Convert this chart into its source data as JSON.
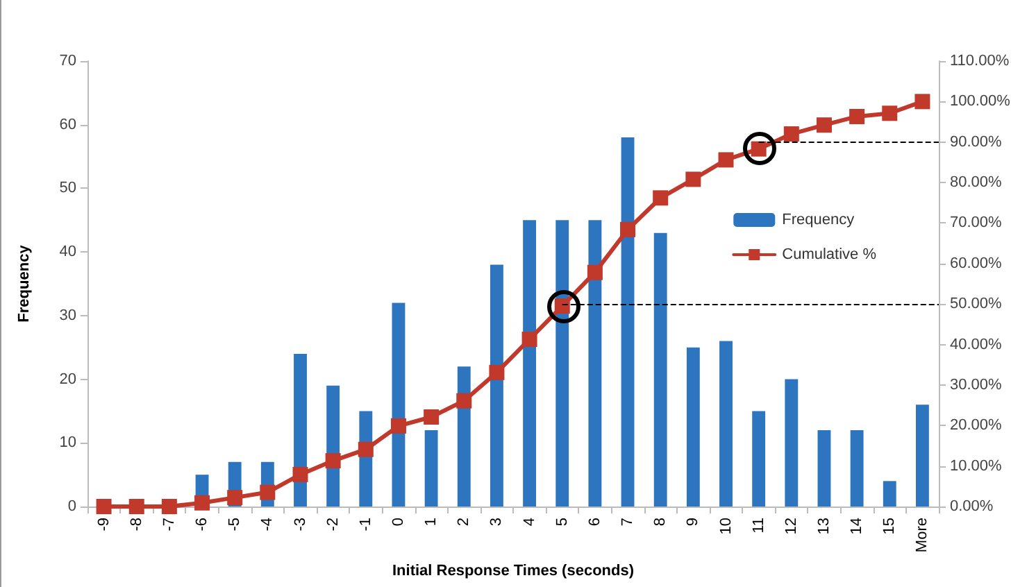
{
  "chart_data": {
    "type": "bar",
    "xlabel": "Initial Response Times (seconds)",
    "ylabel": "Frequency",
    "categories": [
      "-9",
      "-8",
      "-7",
      "-6",
      "-5",
      "-4",
      "-3",
      "-2",
      "-1",
      "0",
      "1",
      "2",
      "3",
      "4",
      "5",
      "6",
      "7",
      "8",
      "9",
      "10",
      "11",
      "12",
      "13",
      "14",
      "15",
      "More"
    ],
    "series": [
      {
        "name": "Frequency",
        "color": "#2e75c0",
        "values": [
          0,
          0,
          0,
          5,
          7,
          7,
          24,
          19,
          15,
          32,
          12,
          22,
          38,
          45,
          45,
          45,
          58,
          43,
          25,
          26,
          15,
          20,
          12,
          12,
          4,
          16
        ]
      },
      {
        "name": "Cumulative %",
        "type": "line",
        "axis": "y2",
        "color": "#c0392b",
        "marker": "square",
        "values": [
          0,
          0,
          0,
          0.9,
          2.2,
          3.5,
          7.9,
          11.3,
          14.1,
          19.9,
          22.1,
          26.1,
          33.1,
          41.3,
          49.5,
          57.8,
          68.4,
          76.2,
          80.8,
          85.6,
          88.3,
          92.0,
          94.2,
          96.3,
          97.1,
          100
        ]
      }
    ],
    "ylim": [
      0,
      70
    ],
    "yticks": [
      0,
      10,
      20,
      30,
      40,
      50,
      60,
      70
    ],
    "y2lim": [
      0,
      110
    ],
    "y2ticks": [
      {
        "value": 0,
        "label": "0.00%"
      },
      {
        "value": 10,
        "label": "10.00%"
      },
      {
        "value": 20,
        "label": "20.00%"
      },
      {
        "value": 30,
        "label": "30.00%"
      },
      {
        "value": 40,
        "label": "40.00%"
      },
      {
        "value": 50,
        "label": "50.00%"
      },
      {
        "value": 60,
        "label": "60.00%"
      },
      {
        "value": 70,
        "label": "70.00%"
      },
      {
        "value": 80,
        "label": "80.00%"
      },
      {
        "value": 90,
        "label": "90.00%"
      },
      {
        "value": 100,
        "label": "100.00%"
      },
      {
        "value": 110,
        "label": "110.00%"
      }
    ],
    "ref_lines": [
      {
        "axis": "y2",
        "value": 50,
        "line_style": "dashed",
        "color": "#000000"
      },
      {
        "axis": "y2",
        "value": 90,
        "line_style": "dashed",
        "color": "#000000"
      }
    ],
    "grid": false,
    "legend": "right"
  }
}
